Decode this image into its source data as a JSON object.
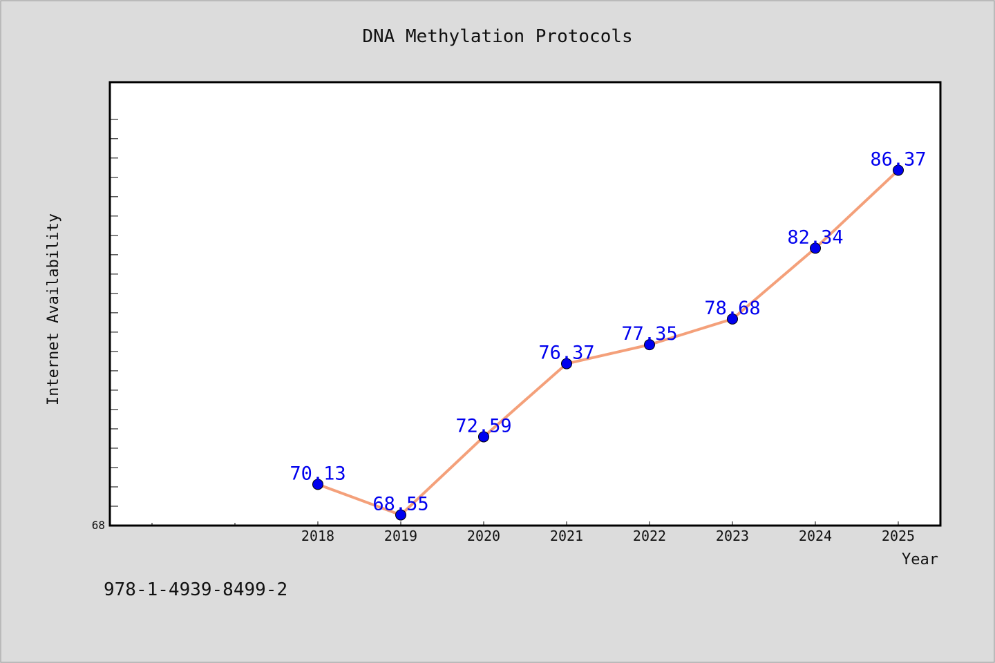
{
  "chart_data": {
    "type": "line",
    "title": "DNA Methylation Protocols",
    "xlabel": "Year",
    "ylabel": "Internet Availability",
    "categories": [
      "2018",
      "2019",
      "2020",
      "2021",
      "2022",
      "2023",
      "2024",
      "2025"
    ],
    "series": [
      {
        "values": [
          70.13,
          68.55,
          72.59,
          76.37,
          77.35,
          78.68,
          82.34,
          86.37
        ],
        "labels": [
          "70.13",
          "68.55",
          "72.59",
          "76.37",
          "77.35",
          "78.68",
          "82.34",
          "86.37"
        ]
      }
    ],
    "y_tick_label": "68",
    "ylim": [
      68,
      90
    ],
    "grid": false,
    "legend": "none",
    "colors": {
      "line": "#f4a07a",
      "marker": "#0000ee",
      "label": "#0000ee",
      "background": "#dcdcdc",
      "plot": "#ffffff"
    }
  },
  "footer": {
    "isbn": "978-1-4939-8499-2"
  }
}
